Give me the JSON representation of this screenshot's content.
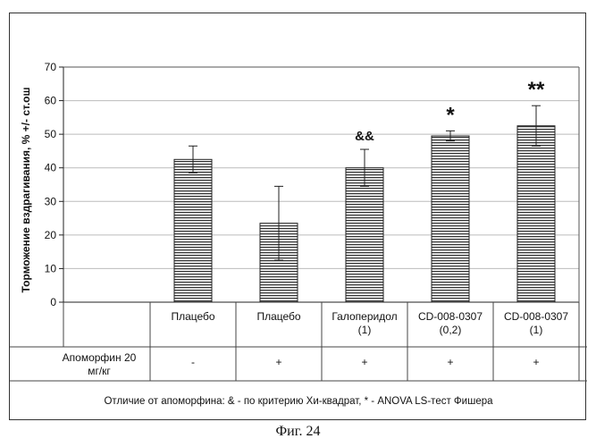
{
  "chart_data": {
    "type": "bar",
    "ylabel": "Торможение вздрагивания, % +/- ст.ош",
    "ylim": [
      0,
      70
    ],
    "yticks": [
      0,
      10,
      20,
      30,
      40,
      50,
      60,
      70
    ],
    "grid": true,
    "categories": [
      "Плацебо",
      "Плацебо",
      "Галоперидол (1)",
      "CD-008-0307 (0,2)",
      "CD-008-0307 (1)"
    ],
    "category_lines": [
      [
        "Плацебо"
      ],
      [
        "Плацебо"
      ],
      [
        "Галоперидол",
        "(1)"
      ],
      [
        "CD-008-0307",
        "(0,2)"
      ],
      [
        "CD-008-0307",
        "(1)"
      ]
    ],
    "values": [
      42.5,
      23.5,
      40,
      49.5,
      52.5
    ],
    "errors": [
      4,
      11,
      5.5,
      1.5,
      6
    ],
    "significance": [
      "",
      "",
      "&&",
      "*",
      "**"
    ],
    "apomorphine_row": {
      "label_lines": [
        "Апоморфин 20",
        "мг/кг"
      ],
      "values": [
        "-",
        "+",
        "+",
        "+",
        "+"
      ]
    },
    "footnote": "Отличие от апоморфина: & - по критерию Хи-квадрат, * - ANOVA LS-тест Фишера"
  },
  "figure_caption": "Фиг. 24"
}
